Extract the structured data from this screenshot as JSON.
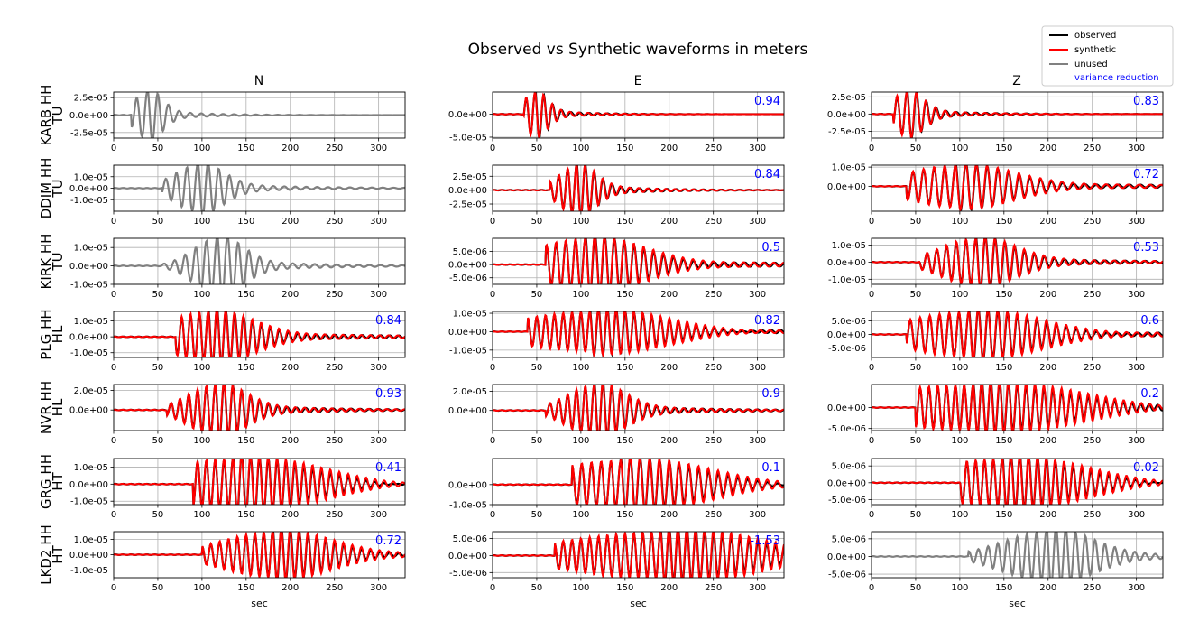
{
  "chart_data": {
    "type": "line",
    "title": "Observed vs Synthetic waveforms in meters",
    "xlabel": "sec",
    "xlim": [
      0,
      330
    ],
    "x_ticks": [
      0,
      50,
      100,
      150,
      200,
      250,
      300
    ],
    "grid": true,
    "columns": [
      "N",
      "E",
      "Z"
    ],
    "legend": {
      "placement": "top-right",
      "entries": [
        {
          "label": "observed",
          "color": "#000000",
          "type": "line"
        },
        {
          "label": "synthetic",
          "color": "#ff0000",
          "type": "line"
        },
        {
          "label": "unused",
          "color": "#808080",
          "type": "line"
        },
        {
          "label": "variance reduction",
          "color": "#0000ff",
          "type": "text"
        }
      ]
    },
    "colors": {
      "observed": "#000000",
      "synthetic": "#ff0000",
      "unused": "#808080",
      "annotation": "#0000ff"
    },
    "rows": [
      {
        "network": "TU",
        "station": "KARB HH",
        "panels": [
          {
            "component": "N",
            "state": "unused",
            "vr": "",
            "ylim": [
              -3.3e-05,
              3.3e-05
            ],
            "ticks": [
              2.5e-05,
              0,
              -2.5e-05
            ],
            "tick_labels": [
              "2.5e-05",
              "0.0e+00",
              "-2.5e-05"
            ],
            "amp": 3.3e-05,
            "onset": 20,
            "peak": 38,
            "period": 12,
            "dur": 35
          },
          {
            "component": "E",
            "state": "used",
            "vr": "0.94",
            "ylim": [
              -5.2e-05,
              4.8e-05
            ],
            "ticks": [
              0,
              -5e-05
            ],
            "tick_labels": [
              "0.0e+00",
              "-5.0e-05"
            ],
            "amp": 4.8e-05,
            "onset": 35,
            "peak": 48,
            "period": 10,
            "dur": 30
          },
          {
            "component": "Z",
            "state": "used",
            "vr": "0.83",
            "ylim": [
              -3.5e-05,
              3.2e-05
            ],
            "ticks": [
              2.5e-05,
              0,
              -2.5e-05
            ],
            "tick_labels": [
              "2.5e-05",
              "0.0e+00",
              "-2.5e-05"
            ],
            "amp": 3.2e-05,
            "onset": 25,
            "peak": 40,
            "period": 11,
            "dur": 40
          }
        ]
      },
      {
        "network": "TU",
        "station": "DDIM HH",
        "panels": [
          {
            "component": "N",
            "state": "unused",
            "vr": "",
            "ylim": [
              -2e-05,
              2e-05
            ],
            "ticks": [
              1e-05,
              0,
              -1e-05
            ],
            "tick_labels": [
              "1.0e-05",
              "0.0e+00",
              "-1.0e-05"
            ],
            "amp": 2e-05,
            "onset": 55,
            "peak": 95,
            "period": 12,
            "dur": 60
          },
          {
            "component": "E",
            "state": "used",
            "vr": "0.84",
            "ylim": [
              -3.8e-05,
              4.5e-05
            ],
            "ticks": [
              2.5e-05,
              0,
              -2.5e-05
            ],
            "tick_labels": [
              "2.5e-05",
              "0.0e+00",
              "-2.5e-05"
            ],
            "amp": 4.5e-05,
            "onset": 65,
            "peak": 95,
            "period": 10,
            "dur": 45
          },
          {
            "component": "Z",
            "state": "used",
            "vr": "0.72",
            "ylim": [
              -1.3e-05,
              1.1e-05
            ],
            "ticks": [
              1e-05,
              0
            ],
            "tick_labels": [
              "1.0e-05",
              "0.0e+00"
            ],
            "amp": 1.1e-05,
            "onset": 40,
            "peak": 95,
            "period": 12,
            "dur": 130
          }
        ]
      },
      {
        "network": "TU",
        "station": "KIRK HH",
        "panels": [
          {
            "component": "N",
            "state": "unused",
            "vr": "",
            "ylim": [
              -1e-05,
              1.5e-05
            ],
            "ticks": [
              1e-05,
              0,
              -1e-05
            ],
            "tick_labels": [
              "1.0e-05",
              "0.0e+00",
              "-1.0e-05"
            ],
            "amp": 1.5e-05,
            "onset": 55,
            "peak": 117,
            "period": 12,
            "dur": 60
          },
          {
            "component": "E",
            "state": "used",
            "vr": "0.5",
            "ylim": [
              -7.5e-06,
              1e-05
            ],
            "ticks": [
              5e-06,
              0,
              -5e-06
            ],
            "tick_labels": [
              "5.0e-06",
              "0.0e+00",
              "-5.0e-06"
            ],
            "amp": 1e-05,
            "onset": 60,
            "peak": 105,
            "period": 11,
            "dur": 130
          },
          {
            "component": "Z",
            "state": "used",
            "vr": "0.53",
            "ylim": [
              -1.3e-05,
              1.4e-05
            ],
            "ticks": [
              1e-05,
              0,
              -1e-05
            ],
            "tick_labels": [
              "1.0e-05",
              "0.0e+00",
              "-1.0e-05"
            ],
            "amp": 1.4e-05,
            "onset": 55,
            "peak": 118,
            "period": 11,
            "dur": 90
          }
        ]
      },
      {
        "network": "HL",
        "station": "PLG HH",
        "panels": [
          {
            "component": "N",
            "state": "used",
            "vr": "0.84",
            "ylim": [
              -1.3e-05,
              1.6e-05
            ],
            "ticks": [
              1e-05,
              0,
              -1e-05
            ],
            "tick_labels": [
              "1.0e-05",
              "0.0e+00",
              "-1.0e-05"
            ],
            "amp": 1.6e-05,
            "onset": 70,
            "peak": 107,
            "period": 10,
            "dur": 100
          },
          {
            "component": "E",
            "state": "used",
            "vr": "0.82",
            "ylim": [
              -1.4e-05,
              1.1e-05
            ],
            "ticks": [
              1e-05,
              0,
              -1e-05
            ],
            "tick_labels": [
              "1.0e-05",
              "0.0e+00",
              "-1.0e-05"
            ],
            "amp": 1.1e-05,
            "onset": 40,
            "peak": 110,
            "period": 10,
            "dur": 180
          },
          {
            "component": "Z",
            "state": "used",
            "vr": "0.6",
            "ylim": [
              -8.5e-06,
              8.5e-06
            ],
            "ticks": [
              5e-06,
              0,
              -5e-06
            ],
            "tick_labels": [
              "5.0e-06",
              "0.0e+00",
              "-5.0e-06"
            ],
            "amp": 8.5e-06,
            "onset": 40,
            "peak": 110,
            "period": 11,
            "dur": 160
          }
        ]
      },
      {
        "network": "HL",
        "station": "NVR HH",
        "panels": [
          {
            "component": "N",
            "state": "used",
            "vr": "0.93",
            "ylim": [
              -2.1e-05,
              2.6e-05
            ],
            "ticks": [
              2e-05,
              0
            ],
            "tick_labels": [
              "2.0e-05",
              "0.0e+00"
            ],
            "amp": 2.6e-05,
            "onset": 60,
            "peak": 115,
            "period": 10,
            "dur": 70
          },
          {
            "component": "E",
            "state": "used",
            "vr": "0.9",
            "ylim": [
              -2.1e-05,
              2.7e-05
            ],
            "ticks": [
              2e-05,
              0
            ],
            "tick_labels": [
              "2.0e-05",
              "0.0e+00"
            ],
            "amp": 2.7e-05,
            "onset": 60,
            "peak": 115,
            "period": 10,
            "dur": 70
          },
          {
            "component": "Z",
            "state": "used",
            "vr": "0.2",
            "ylim": [
              -5.5e-06,
              5.5e-06
            ],
            "ticks": [
              0,
              -5e-06
            ],
            "tick_labels": [
              "0.0e+00",
              "-5.0e-06"
            ],
            "amp": 5.5e-06,
            "onset": 50,
            "peak": 115,
            "period": 10,
            "dur": 270
          }
        ]
      },
      {
        "network": "HT",
        "station": "GRG HH",
        "panels": [
          {
            "component": "N",
            "state": "used",
            "vr": "0.41",
            "ylim": [
              -1.2e-05,
              1.5e-05
            ],
            "ticks": [
              1e-05,
              0,
              -1e-05
            ],
            "tick_labels": [
              "1.0e-05",
              "0.0e+00",
              "-1.0e-05"
            ],
            "amp": 1.5e-05,
            "onset": 90,
            "peak": 135,
            "period": 10,
            "dur": 200
          },
          {
            "component": "E",
            "state": "used",
            "vr": "0.1",
            "ylim": [
              -1e-05,
              1.3e-05
            ],
            "ticks": [
              0,
              -1e-05
            ],
            "tick_labels": [
              "0.0e+00",
              "-1.0e-05"
            ],
            "amp": 1.2e-05,
            "onset": 90,
            "peak": 145,
            "period": 11,
            "dur": 200
          },
          {
            "component": "Z",
            "state": "used",
            "vr": "-0.02",
            "ylim": [
              -6.5e-06,
              7.2e-06
            ],
            "ticks": [
              5e-06,
              0,
              -5e-06
            ],
            "tick_labels": [
              "5.0e-06",
              "0.0e+00",
              "-5.0e-06"
            ],
            "amp": 7.2e-06,
            "onset": 100,
            "peak": 148,
            "period": 10,
            "dur": 190
          }
        ]
      },
      {
        "network": "HT",
        "station": "LKD2 HH",
        "panels": [
          {
            "component": "N",
            "state": "used",
            "vr": "0.72",
            "ylim": [
              -1.5e-05,
              1.5e-05
            ],
            "ticks": [
              1e-05,
              0,
              -1e-05
            ],
            "tick_labels": [
              "1.0e-05",
              "0.0e+00",
              "-1.0e-05"
            ],
            "amp": 1.5e-05,
            "onset": 100,
            "peak": 180,
            "period": 10,
            "dur": 130
          },
          {
            "component": "E",
            "state": "used",
            "vr": "-1.53",
            "ylim": [
              -6.5e-06,
              7e-06
            ],
            "ticks": [
              5e-06,
              0,
              -5e-06
            ],
            "tick_labels": [
              "5.0e-06",
              "0.0e+00",
              "-5.0e-06"
            ],
            "amp": 7e-06,
            "onset": 70,
            "peak": 190,
            "period": 10,
            "dur": 250
          },
          {
            "component": "Z",
            "state": "unused",
            "vr": "",
            "ylim": [
              -6e-06,
              7e-06
            ],
            "ticks": [
              5e-06,
              0,
              -5e-06
            ],
            "tick_labels": [
              "5.0e-06",
              "0.0e+00",
              "-5.0e-06"
            ],
            "amp": 7e-06,
            "onset": 110,
            "peak": 198,
            "period": 11,
            "dur": 110
          }
        ]
      }
    ]
  }
}
